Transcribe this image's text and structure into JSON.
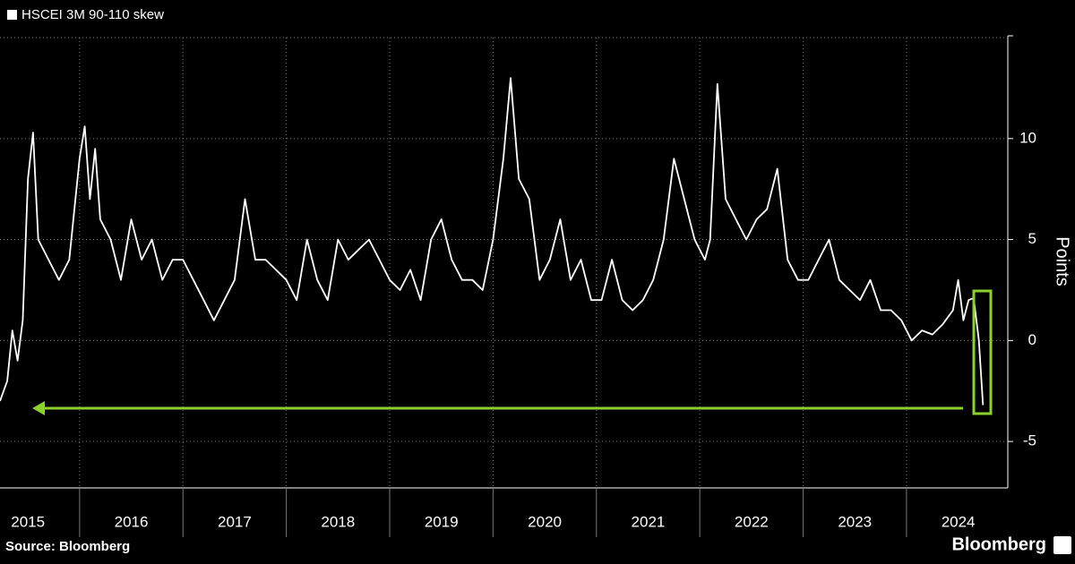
{
  "chart_data": {
    "type": "line",
    "title": "HSCEI 3M 90-110 skew",
    "y_label": "Points",
    "source": "Source: Bloomberg",
    "brand": "Bloomberg",
    "x": [
      2015.23,
      2015.3,
      2015.35,
      2015.4,
      2015.45,
      2015.5,
      2015.55,
      2015.6,
      2015.7,
      2015.8,
      2015.9,
      2016.0,
      2016.05,
      2016.1,
      2016.15,
      2016.2,
      2016.3,
      2016.4,
      2016.5,
      2016.6,
      2016.7,
      2016.8,
      2016.9,
      2017.0,
      2017.1,
      2017.2,
      2017.3,
      2017.4,
      2017.5,
      2017.6,
      2017.7,
      2017.8,
      2017.9,
      2018.0,
      2018.1,
      2018.2,
      2018.3,
      2018.4,
      2018.5,
      2018.6,
      2018.7,
      2018.8,
      2018.9,
      2019.0,
      2019.1,
      2019.2,
      2019.3,
      2019.4,
      2019.5,
      2019.6,
      2019.7,
      2019.8,
      2019.9,
      2020.0,
      2020.1,
      2020.17,
      2020.25,
      2020.35,
      2020.45,
      2020.55,
      2020.65,
      2020.75,
      2020.85,
      2020.95,
      2021.05,
      2021.15,
      2021.25,
      2021.35,
      2021.45,
      2021.55,
      2021.65,
      2021.75,
      2021.85,
      2021.95,
      2022.05,
      2022.1,
      2022.17,
      2022.25,
      2022.35,
      2022.45,
      2022.55,
      2022.65,
      2022.75,
      2022.85,
      2022.95,
      2023.05,
      2023.15,
      2023.25,
      2023.35,
      2023.45,
      2023.55,
      2023.65,
      2023.75,
      2023.85,
      2023.95,
      2024.05,
      2024.15,
      2024.25,
      2024.35,
      2024.45,
      2024.5,
      2024.55,
      2024.6,
      2024.65,
      2024.7,
      2024.74
    ],
    "series": [
      {
        "name": "HSCEI 3M 90-110 skew",
        "color": "#ffffff",
        "values": [
          -3,
          -2,
          0.5,
          -1,
          1,
          8,
          10.3,
          5,
          4,
          3,
          4,
          9,
          10.6,
          7,
          9.5,
          6,
          5,
          3,
          6,
          4,
          5,
          3,
          4,
          4,
          3,
          2,
          1,
          2,
          3,
          7,
          4,
          4,
          3.5,
          3,
          2,
          5,
          3,
          2,
          5,
          4,
          4.5,
          5,
          4,
          3,
          2.5,
          3.5,
          2,
          5,
          6,
          4,
          3,
          3,
          2.5,
          5,
          9,
          13,
          8,
          7,
          3,
          4,
          6,
          3,
          4,
          2,
          2,
          4,
          2,
          1.5,
          2,
          3,
          5,
          9,
          7,
          5,
          4,
          5,
          12.7,
          7,
          6,
          5,
          6,
          6.5,
          8.5,
          4,
          3,
          3,
          4,
          5,
          3,
          2.5,
          2,
          3,
          1.5,
          1.5,
          1,
          0,
          0.5,
          0.3,
          0.8,
          1.5,
          3,
          1,
          2,
          2.1,
          0,
          -3.2
        ]
      }
    ],
    "xlim": [
      2015.23,
      2024.98
    ],
    "ylim": [
      -7.3,
      15
    ],
    "xticks": [
      {
        "value": 2015.5,
        "label": "2015"
      },
      {
        "value": 2016.5,
        "label": "2016"
      },
      {
        "value": 2017.5,
        "label": "2017"
      },
      {
        "value": 2018.5,
        "label": "2018"
      },
      {
        "value": 2019.5,
        "label": "2019"
      },
      {
        "value": 2020.5,
        "label": "2020"
      },
      {
        "value": 2021.5,
        "label": "2021"
      },
      {
        "value": 2022.5,
        "label": "2022"
      },
      {
        "value": 2023.5,
        "label": "2023"
      },
      {
        "value": 2024.5,
        "label": "2024"
      }
    ],
    "yticks": [
      -5,
      0,
      5,
      10
    ],
    "grid": true
  }
}
